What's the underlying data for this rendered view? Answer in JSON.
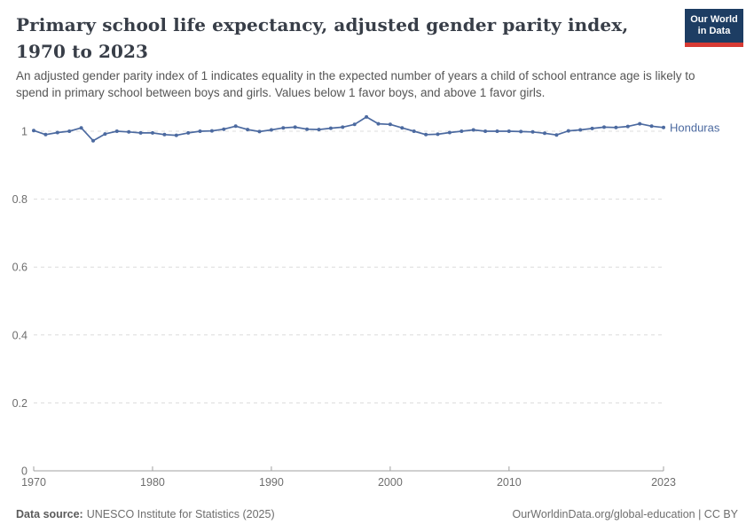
{
  "header": {
    "title": "Primary school life expectancy, adjusted gender parity index, 1970 to 2023",
    "subtitle": "An adjusted gender parity index of 1 indicates equality in the expected number of years a child of school entrance age is likely to spend in primary school between boys and girls. Values below 1 favor boys, and above 1 favor girls.",
    "logo": {
      "line1": "Our World",
      "line2": "in Data"
    }
  },
  "chart_data": {
    "type": "line",
    "title": "Primary school life expectancy, adjusted gender parity index, 1970 to 2023",
    "subtitle": "An adjusted gender parity index of 1 indicates equality in the expected number of years a child of school entrance age is likely to spend in primary school between boys and girls. Values below 1 favor boys, and above 1 favor girls.",
    "xlabel": "",
    "ylabel": "",
    "xlim": [
      1970,
      2023
    ],
    "ylim": [
      0,
      1.06
    ],
    "grid": "horizontal-dashed",
    "legend_position": "end-of-line-label",
    "x_ticks": [
      1970,
      1980,
      1990,
      2000,
      2010,
      2023
    ],
    "y_ticks": [
      {
        "value": 0,
        "label": "0"
      },
      {
        "value": 0.2,
        "label": "0.2"
      },
      {
        "value": 0.4,
        "label": "0.4"
      },
      {
        "value": 0.6,
        "label": "0.6"
      },
      {
        "value": 0.8,
        "label": "0.8"
      },
      {
        "value": 1,
        "label": "1"
      }
    ],
    "series": [
      {
        "name": "Honduras",
        "color": "#4c6aa0",
        "x": [
          1970,
          1971,
          1972,
          1973,
          1974,
          1975,
          1976,
          1977,
          1978,
          1979,
          1980,
          1981,
          1982,
          1983,
          1984,
          1985,
          1986,
          1987,
          1988,
          1989,
          1990,
          1991,
          1992,
          1993,
          1994,
          1995,
          1996,
          1997,
          1998,
          1999,
          2000,
          2001,
          2002,
          2003,
          2004,
          2005,
          2006,
          2007,
          2008,
          2009,
          2010,
          2011,
          2012,
          2013,
          2014,
          2015,
          2016,
          2017,
          2018,
          2019,
          2020,
          2021,
          2022,
          2023
        ],
        "values": [
          1.002,
          0.99,
          0.996,
          1.0,
          1.01,
          0.972,
          0.992,
          1.0,
          0.998,
          0.995,
          0.995,
          0.99,
          0.988,
          0.995,
          1.0,
          1.001,
          1.006,
          1.015,
          1.005,
          0.999,
          1.004,
          1.01,
          1.012,
          1.006,
          1.005,
          1.009,
          1.012,
          1.02,
          1.042,
          1.022,
          1.02,
          1.01,
          1.0,
          0.99,
          0.991,
          0.996,
          1.0,
          1.004,
          1.0,
          1.0,
          1.0,
          0.999,
          0.998,
          0.994,
          0.989,
          1.001,
          1.004,
          1.008,
          1.012,
          1.011,
          1.014,
          1.022,
          1.015,
          1.011
        ]
      }
    ]
  },
  "footer": {
    "source_label": "Data source:",
    "source_text": "UNESCO Institute for Statistics (2025)",
    "credit": "OurWorldinData.org/global-education | CC BY"
  },
  "colors": {
    "accent_line": "#4c6aa0",
    "logo_background": "#1d3d63",
    "logo_bar": "#d73a33",
    "gridline": "#dcdcdc",
    "axis": "#a1a1a1",
    "tick_label": "#6e6e6e",
    "title_text": "#383e48",
    "subtitle_text": "#555555"
  }
}
